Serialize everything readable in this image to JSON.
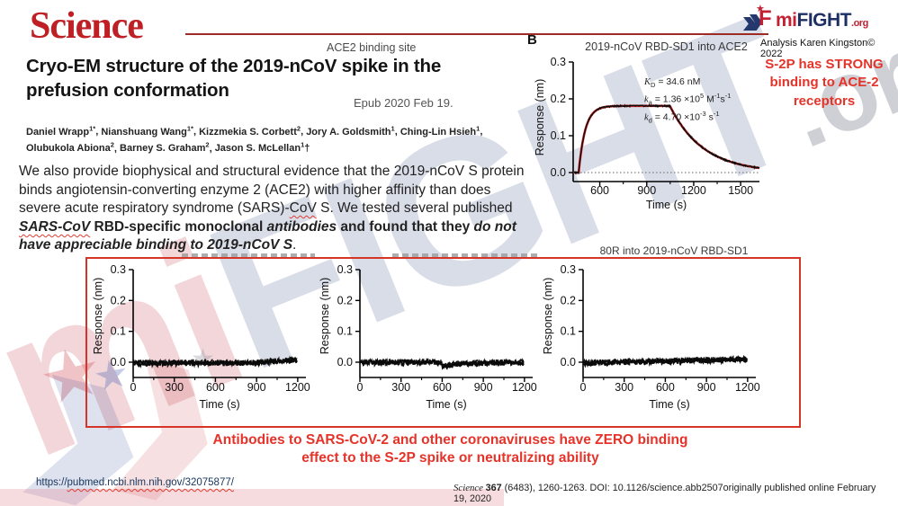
{
  "header": {
    "journal": "Science",
    "ace2_label": "ACE2 binding site",
    "title": "Cryo-EM structure of the 2019-nCoV spike in the prefusion conformation",
    "epub": "Epub 2020 Feb 19.",
    "authors_line1": [
      {
        "name": "Daniel Wrapp",
        "sup": "1*"
      },
      {
        "name": "Nianshuang Wang",
        "sup": "1*"
      },
      {
        "name": "Kizzmekia S. Corbett",
        "sup": "2"
      },
      {
        "name": "Jory A. Goldsmith",
        "sup": "1"
      },
      {
        "name": "Ching-Lin Hsieh",
        "sup": "1"
      }
    ],
    "authors_line1_trail": ",",
    "authors_line2": [
      {
        "name": "Olubukola Abiona",
        "sup": "2"
      },
      {
        "name": "Barney S. Graham",
        "sup": "2"
      },
      {
        "name": "Jason S. McLellan",
        "sup": "1",
        "after": "†"
      }
    ]
  },
  "brand": {
    "logo_mi": "mi",
    "logo_fight": "FIGHT",
    "logo_org": ".org",
    "analysis": "Analysis Karen Kingston© 2022",
    "star_glyph": "★"
  },
  "abstract": {
    "segments": [
      {
        "t": "We also provide biophysical and structural evidence that the 2019-nCoV S protein binds angiotensin-converting enzyme 2 (ACE2) with higher affinity than does severe acute respiratory syndrome (SARS)-",
        "st": "n"
      },
      {
        "t": "CoV",
        "st": "n",
        "sq": true
      },
      {
        "t": " S. We tested several published ",
        "st": "n"
      },
      {
        "t": "SARS-CoV",
        "st": "bi",
        "sq": true
      },
      {
        "t": " RBD-specific monoclonal ",
        "st": "b"
      },
      {
        "t": "antibodies",
        "st": "bi"
      },
      {
        "t": " and found that they ",
        "st": "b"
      },
      {
        "t": "do not have appreciable binding to 2019-nCoV S",
        "st": "bi"
      },
      {
        "t": ".",
        "st": "n"
      }
    ]
  },
  "panel_b_label": "B",
  "annotations": {
    "strong_binding": "S-2P has STRONG binding to ACE-2 receptors",
    "zero_binding_line1": "Antibodies to SARS-CoV-2 and other coronaviruses have ZERO binding",
    "zero_binding_line2": "effect to the S-2P spike or neutralizing ability"
  },
  "chart_data": [
    {
      "type": "line",
      "title": "2019-nCoV RBD-SD1 into ACE2",
      "xlabel": "Time (s)",
      "ylabel": "Response (nm)",
      "xlim": [
        430,
        1620
      ],
      "ylim": [
        0,
        0.3
      ],
      "xticks": [
        600,
        900,
        1200,
        1500
      ],
      "xticks_minor": [
        750,
        1050,
        1350
      ],
      "yticks": [
        "0.0",
        "0.1",
        "0.2",
        "0.3"
      ],
      "legend_position": "none",
      "grid": false,
      "baseline_dotted": true,
      "kinetics": [
        "*K*_{D} = 34.6 nM",
        "*k*_{a} = 1.36 ×10^{5} M^{-1}s^{-1}",
        "*k*_{d} = 4.70 ×10^{-3} s^{-1}"
      ],
      "series": [
        {
          "name": "fit",
          "color": "#cc2020",
          "description": "smooth kinetic fit, association from ~465 s to plateau 0.18 nm, dissociation after ~1050 s decaying to ~0.014 nm at 1620 s"
        },
        {
          "name": "data",
          "color": "#0a0a0a",
          "description": "measured sensorgram overlapping the fit"
        }
      ],
      "model": {
        "kind": "assoc",
        "t0": 465,
        "ka_rate": 0.024,
        "rmax": 0.181,
        "t1": 1048,
        "kd_rate": 0.0047,
        "seed": 3
      }
    },
    {
      "type": "line",
      "title": "",
      "title_clipped": true,
      "xlabel": "Time (s)",
      "ylabel": "Response (nm)",
      "xlim": [
        0,
        1260
      ],
      "ylim": [
        0,
        0.3
      ],
      "xticks": [
        0,
        300,
        600,
        900,
        1200
      ],
      "xticks_minor": [
        150,
        450,
        750,
        1050
      ],
      "yticks": [
        "0.0",
        "0.1",
        "0.2",
        "0.3"
      ],
      "series": [
        {
          "name": "data",
          "color": "#0a0a0a",
          "description": "flat noisy trace at ~0.0 nm, slight rise near 1200 s"
        }
      ],
      "model": {
        "kind": "flat",
        "drift": "rise_end",
        "seed": 7
      }
    },
    {
      "type": "line",
      "title": "",
      "title_clipped": true,
      "xlabel": "Time (s)",
      "ylabel": "Response (nm)",
      "xlim": [
        0,
        1260
      ],
      "ylim": [
        0,
        0.3
      ],
      "xticks": [
        0,
        300,
        600,
        900,
        1200
      ],
      "xticks_minor": [
        150,
        450,
        750,
        1050
      ],
      "yticks": [
        "0.0",
        "0.1",
        "0.2",
        "0.3"
      ],
      "series": [
        {
          "name": "data",
          "color": "#0a0a0a",
          "description": "flat noisy trace at ~0.0 nm with small dip just after 600 s"
        }
      ],
      "model": {
        "kind": "flat",
        "drift": "dip_mid",
        "seed": 11
      }
    },
    {
      "type": "line",
      "title": "80R into 2019-nCoV RBD-SD1",
      "xlabel": "Time (s)",
      "ylabel": "Response (nm)",
      "xlim": [
        0,
        1260
      ],
      "ylim": [
        0,
        0.3
      ],
      "xticks": [
        0,
        300,
        600,
        900,
        1200
      ],
      "xticks_minor": [
        150,
        450,
        750,
        1050
      ],
      "yticks": [
        "0.0",
        "0.1",
        "0.2",
        "0.3"
      ],
      "series": [
        {
          "name": "data",
          "color": "#0a0a0a",
          "description": "flat noisy trace at ~0.0 nm drifting up slightly to ~0.01 nm"
        }
      ],
      "model": {
        "kind": "flat",
        "drift": "rise_slow",
        "seed": 13
      }
    }
  ],
  "footer": {
    "url_parts": [
      {
        "t": "https://",
        "sq": false
      },
      {
        "t": "pubmed.ncbi.nlm.nih.gov/32075877/",
        "sq": true
      }
    ],
    "citation_segments": [
      {
        "t": "Science ",
        "st": "i"
      },
      {
        "t": "367",
        "st": "b"
      },
      {
        "t": " (6483), 1260-1263. DOI: 10.1126/science.abb2507originally published online February 19, 2020",
        "st": "n"
      }
    ]
  },
  "colors": {
    "accent_red": "#e63329",
    "box_red": "#d63426",
    "science_red": "#bf2026",
    "brand_navy": "#1e2f63",
    "brand_red": "#c32032",
    "fit_red": "#cc2020",
    "trace_black": "#0a0a0a",
    "link_blue": "#17365d"
  }
}
